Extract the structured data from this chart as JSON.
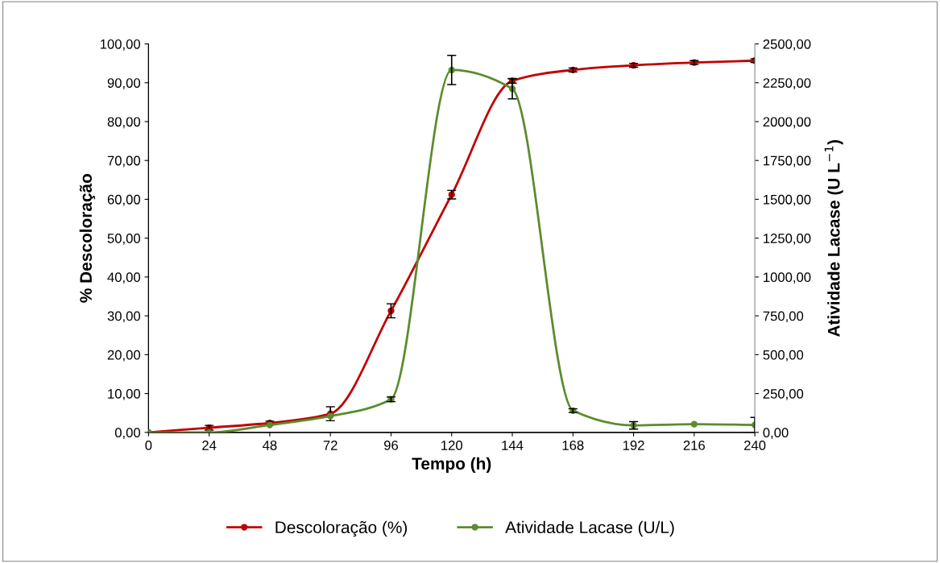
{
  "chart_data": {
    "type": "line",
    "xlabel": "Tempo (h)",
    "ylabel": "% Descoloração",
    "y2label": "Atividade Lacase (U L$^{−1}$)",
    "x": [
      0,
      24,
      48,
      72,
      96,
      120,
      144,
      168,
      192,
      216,
      240
    ],
    "xlim": [
      0,
      240
    ],
    "xticks": [
      0,
      24,
      48,
      72,
      96,
      120,
      144,
      168,
      192,
      216,
      240
    ],
    "ylim": [
      0,
      100
    ],
    "yticks": [
      {
        "value": 0,
        "label": "0,00"
      },
      {
        "value": 10,
        "label": "10,00"
      },
      {
        "value": 20,
        "label": "20,00"
      },
      {
        "value": 30,
        "label": "30,00"
      },
      {
        "value": 40,
        "label": "40,00"
      },
      {
        "value": 50,
        "label": "50,00"
      },
      {
        "value": 60,
        "label": "60,00"
      },
      {
        "value": 70,
        "label": "70,00"
      },
      {
        "value": 80,
        "label": "80,00"
      },
      {
        "value": 90,
        "label": "90,00"
      },
      {
        "value": 100,
        "label": "100,00"
      }
    ],
    "y2lim": [
      0,
      2500
    ],
    "y2ticks": [
      {
        "value": 0,
        "label": "0,00"
      },
      {
        "value": 250,
        "label": "250,00"
      },
      {
        "value": 500,
        "label": "500,00"
      },
      {
        "value": 750,
        "label": "750,00"
      },
      {
        "value": 1000,
        "label": "1000,00"
      },
      {
        "value": 1250,
        "label": "1250,00"
      },
      {
        "value": 1500,
        "label": "1500,00"
      },
      {
        "value": 1750,
        "label": "1750,00"
      },
      {
        "value": 2000,
        "label": "2000,00"
      },
      {
        "value": 2250,
        "label": "2250,00"
      },
      {
        "value": 2500,
        "label": "2500,00"
      }
    ],
    "series": [
      {
        "name": "Descoloração (%)",
        "color": "#c00000",
        "values": [
          0,
          1.2,
          2.4,
          4.8,
          31.3,
          61.2,
          90.5,
          93.3,
          94.5,
          95.2,
          95.7
        ],
        "errors": [
          null,
          0.6,
          0.5,
          1.8,
          1.8,
          1.1,
          0.6,
          0.5,
          0.5,
          0.5,
          0.5
        ]
      },
      {
        "name": "Atividade Lacase (U/L)",
        "color": "#5b8c2e",
        "axis": "y2",
        "values": [
          0,
          0,
          48,
          105,
          213,
          2332,
          2211,
          140,
          45,
          53,
          48
        ],
        "errors": [
          null,
          null,
          null,
          null,
          15,
          94,
          65,
          12,
          24,
          null,
          48
        ]
      }
    ],
    "marker": "circle",
    "line_style": "solid",
    "legend": "bottom",
    "grid": false
  }
}
